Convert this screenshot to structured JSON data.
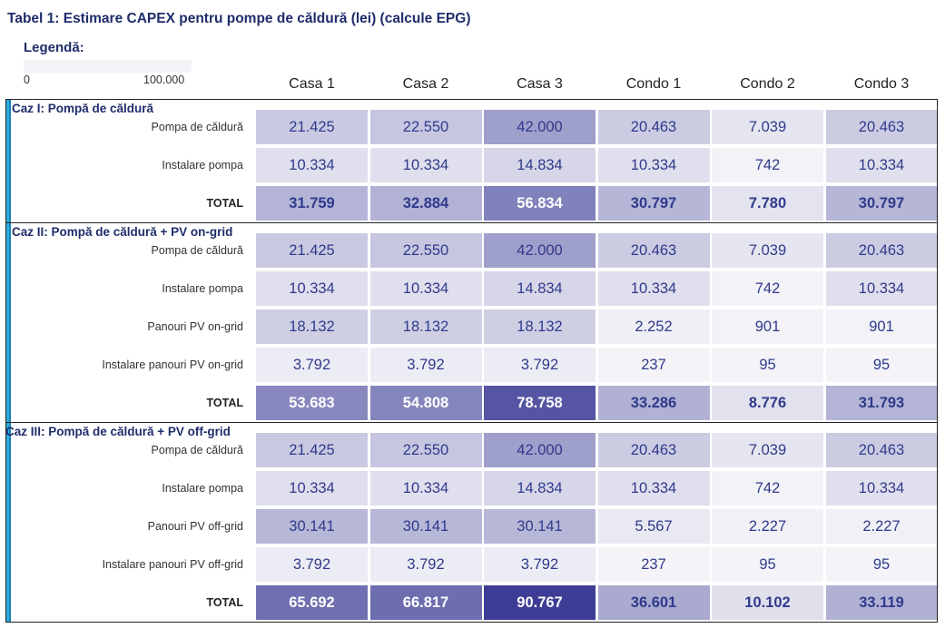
{
  "title": "Tabel 1: Estimare CAPEX pentru pompe de căldură (lei) (calcule EPG)",
  "legend": {
    "title": "Legendă:",
    "min_label": "0",
    "max_label": "100.000",
    "min": 0,
    "max": 100000
  },
  "colors": {
    "low": "#f4f4f8",
    "high": "#2a2a8c",
    "title": "#1f2d6b",
    "accent": "#2aaee0"
  },
  "chart_data": {
    "type": "heatmap",
    "columns": [
      "Casa 1",
      "Casa 2",
      "Casa 3",
      "Condo 1",
      "Condo 2",
      "Condo 3"
    ],
    "groups": [
      {
        "name": "Caz I: Pompă de căldură",
        "rows": [
          {
            "label": "Pompa de căldură",
            "total": false,
            "display": [
              "21.425",
              "22.550",
              "42.000",
              "20.463",
              "7.039",
              "20.463"
            ],
            "values": [
              21425,
              22550,
              42000,
              20463,
              7039,
              20463
            ]
          },
          {
            "label": "Instalare pompa",
            "total": false,
            "display": [
              "10.334",
              "10.334",
              "14.834",
              "10.334",
              "742",
              "10.334"
            ],
            "values": [
              10334,
              10334,
              14834,
              10334,
              742,
              10334
            ]
          },
          {
            "label": "TOTAL",
            "total": true,
            "display": [
              "31.759",
              "32.884",
              "56.834",
              "30.797",
              "7.780",
              "30.797"
            ],
            "values": [
              31759,
              32884,
              56834,
              30797,
              7780,
              30797
            ]
          }
        ]
      },
      {
        "name": "Caz II: Pompă de căldură + PV on-grid",
        "rows": [
          {
            "label": "Pompa de căldură",
            "total": false,
            "display": [
              "21.425",
              "22.550",
              "42.000",
              "20.463",
              "7.039",
              "20.463"
            ],
            "values": [
              21425,
              22550,
              42000,
              20463,
              7039,
              20463
            ]
          },
          {
            "label": "Instalare pompa",
            "total": false,
            "display": [
              "10.334",
              "10.334",
              "14.834",
              "10.334",
              "742",
              "10.334"
            ],
            "values": [
              10334,
              10334,
              14834,
              10334,
              742,
              10334
            ]
          },
          {
            "label": "Panouri PV on-grid",
            "total": false,
            "display": [
              "18.132",
              "18.132",
              "18.132",
              "2.252",
              "901",
              "901"
            ],
            "values": [
              18132,
              18132,
              18132,
              2252,
              901,
              901
            ]
          },
          {
            "label": "Instalare panouri PV on-grid",
            "total": false,
            "display": [
              "3.792",
              "3.792",
              "3.792",
              "237",
              "95",
              "95"
            ],
            "values": [
              3792,
              3792,
              3792,
              237,
              95,
              95
            ]
          },
          {
            "label": "TOTAL",
            "total": true,
            "display": [
              "53.683",
              "54.808",
              "78.758",
              "33.286",
              "8.776",
              "31.793"
            ],
            "values": [
              53683,
              54808,
              78758,
              33286,
              8776,
              31793
            ]
          }
        ]
      },
      {
        "name": "Caz III: Pompă de căldură + PV off-grid",
        "rows": [
          {
            "label": "Pompa de căldură",
            "total": false,
            "display": [
              "21.425",
              "22.550",
              "42.000",
              "20.463",
              "7.039",
              "20.463"
            ],
            "values": [
              21425,
              22550,
              42000,
              20463,
              7039,
              20463
            ]
          },
          {
            "label": "Instalare pompa",
            "total": false,
            "display": [
              "10.334",
              "10.334",
              "14.834",
              "10.334",
              "742",
              "10.334"
            ],
            "values": [
              10334,
              10334,
              14834,
              10334,
              742,
              10334
            ]
          },
          {
            "label": "Panouri PV off-grid",
            "total": false,
            "display": [
              "30.141",
              "30.141",
              "30.141",
              "5.567",
              "2.227",
              "2.227"
            ],
            "values": [
              30141,
              30141,
              30141,
              5567,
              2227,
              2227
            ]
          },
          {
            "label": "Instalare panouri PV off-grid",
            "total": false,
            "display": [
              "3.792",
              "3.792",
              "3.792",
              "237",
              "95",
              "95"
            ],
            "values": [
              3792,
              3792,
              3792,
              237,
              95,
              95
            ]
          },
          {
            "label": "TOTAL",
            "total": true,
            "display": [
              "65.692",
              "66.817",
              "90.767",
              "36.601",
              "10.102",
              "33.119"
            ],
            "values": [
              65692,
              66817,
              90767,
              36601,
              10102,
              33119
            ]
          }
        ]
      }
    ]
  }
}
